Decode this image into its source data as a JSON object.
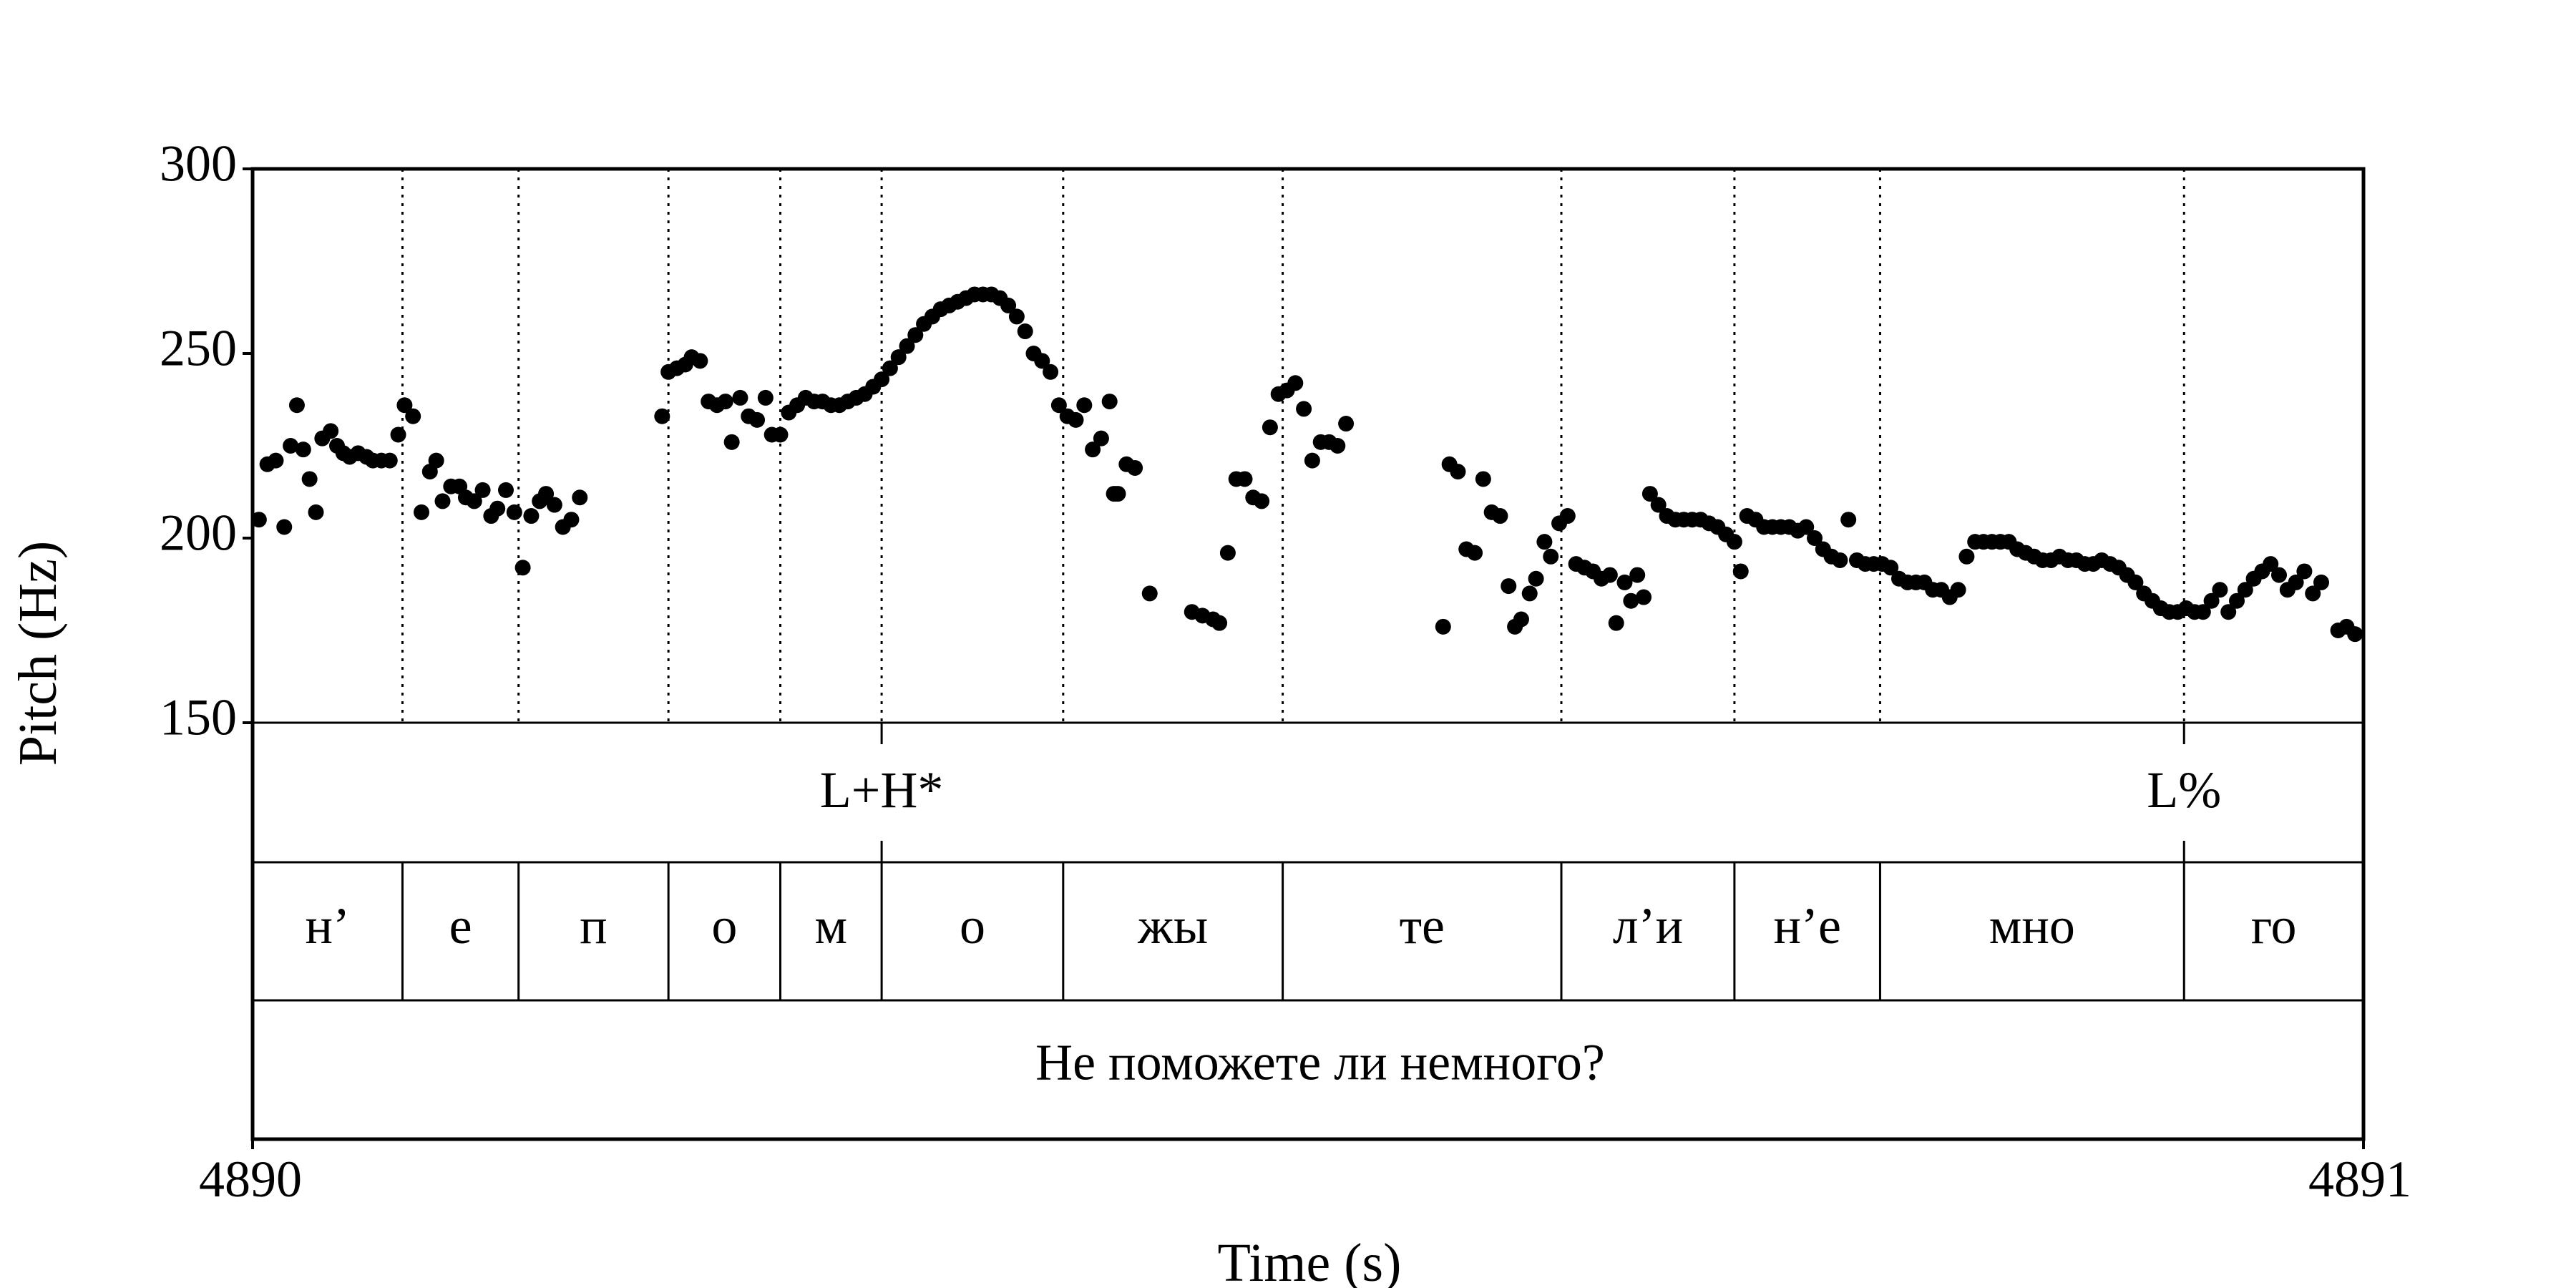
{
  "chart_data": {
    "type": "scatter",
    "title": "",
    "xlabel": "Time (s)",
    "ylabel": "Pitch (Hz)",
    "x_tick_labels": [
      "4890",
      "4891"
    ],
    "y_tick_labels": [
      "300",
      "250",
      "200",
      "150"
    ],
    "xlim": [
      4890,
      4891
    ],
    "ylim": [
      150,
      300
    ],
    "y_ticks": [
      150,
      200,
      250,
      300
    ],
    "tone_tier": {
      "marks": [
        {
          "time": 4890.298,
          "label": "L+H*"
        },
        {
          "time": 4890.915,
          "label": "L%"
        }
      ]
    },
    "segment_tier": {
      "boundaries": [
        4890.071,
        4890.126,
        4890.197,
        4890.25,
        4890.298,
        4890.384,
        4890.488,
        4890.62,
        4890.702,
        4890.771,
        4890.915
      ],
      "segments": [
        {
          "label": "н’",
          "start": 4890.0,
          "end": 4890.071
        },
        {
          "label": "е",
          "start": 4890.071,
          "end": 4890.126
        },
        {
          "label": "п",
          "start": 4890.126,
          "end": 4890.197
        },
        {
          "label": "о",
          "start": 4890.197,
          "end": 4890.25
        },
        {
          "label": "м",
          "start": 4890.25,
          "end": 4890.298
        },
        {
          "label": "о",
          "start": 4890.298,
          "end": 4890.384
        },
        {
          "label": "жы",
          "start": 4890.384,
          "end": 4890.488
        },
        {
          "label": "те",
          "start": 4890.488,
          "end": 4890.62
        },
        {
          "label": "л’и",
          "start": 4890.62,
          "end": 4890.702
        },
        {
          "label": "н’е",
          "start": 4890.702,
          "end": 4890.771
        },
        {
          "label": "мно",
          "start": 4890.771,
          "end": 4890.915
        },
        {
          "label": "го",
          "start": 4890.915,
          "end": 4891.0
        }
      ]
    },
    "sentence_tier": {
      "label": "Не поможете ли немного?",
      "start": 4890.0,
      "end": 4891.0
    },
    "series": [
      {
        "points": [
          [
            4890.003,
            205
          ],
          [
            4890.007,
            220
          ],
          [
            4890.011,
            221
          ],
          [
            4890.015,
            203
          ],
          [
            4890.018,
            225
          ],
          [
            4890.021,
            236
          ],
          [
            4890.024,
            224
          ],
          [
            4890.027,
            216
          ],
          [
            4890.03,
            207
          ],
          [
            4890.033,
            227
          ],
          [
            4890.037,
            229
          ],
          [
            4890.04,
            225
          ],
          [
            4890.043,
            223
          ],
          [
            4890.046,
            222
          ],
          [
            4890.05,
            223
          ],
          [
            4890.054,
            222
          ],
          [
            4890.057,
            221
          ],
          [
            4890.061,
            221
          ],
          [
            4890.065,
            221
          ],
          [
            4890.069,
            228
          ],
          [
            4890.072,
            236
          ],
          [
            4890.076,
            233
          ],
          [
            4890.08,
            207
          ],
          [
            4890.084,
            218
          ],
          [
            4890.087,
            221
          ],
          [
            4890.09,
            210
          ],
          [
            4890.094,
            214
          ],
          [
            4890.098,
            214
          ],
          [
            4890.101,
            211
          ],
          [
            4890.105,
            210
          ],
          [
            4890.109,
            213
          ],
          [
            4890.113,
            206
          ],
          [
            4890.116,
            208
          ],
          [
            4890.12,
            213
          ],
          [
            4890.124,
            207
          ],
          [
            4890.128,
            192
          ],
          [
            4890.132,
            206
          ],
          [
            4890.136,
            210
          ],
          [
            4890.139,
            212
          ],
          [
            4890.143,
            209
          ],
          [
            4890.147,
            203
          ],
          [
            4890.151,
            205
          ],
          [
            4890.155,
            211
          ],
          [
            4890.194,
            233
          ],
          [
            4890.197,
            245
          ],
          [
            4890.201,
            246
          ],
          [
            4890.205,
            247
          ],
          [
            4890.208,
            249
          ],
          [
            4890.212,
            248
          ],
          [
            4890.216,
            237
          ],
          [
            4890.22,
            236
          ],
          [
            4890.224,
            237
          ],
          [
            4890.227,
            226
          ],
          [
            4890.231,
            238
          ],
          [
            4890.235,
            233
          ],
          [
            4890.239,
            232
          ],
          [
            4890.243,
            238
          ],
          [
            4890.246,
            228
          ],
          [
            4890.25,
            228
          ],
          [
            4890.254,
            234
          ],
          [
            4890.258,
            236
          ],
          [
            4890.262,
            238
          ],
          [
            4890.266,
            237
          ],
          [
            4890.27,
            237
          ],
          [
            4890.274,
            236
          ],
          [
            4890.278,
            236
          ],
          [
            4890.282,
            237
          ],
          [
            4890.286,
            238
          ],
          [
            4890.29,
            239
          ],
          [
            4890.294,
            241
          ],
          [
            4890.298,
            243
          ],
          [
            4890.302,
            246
          ],
          [
            4890.306,
            249
          ],
          [
            4890.31,
            252
          ],
          [
            4890.314,
            255
          ],
          [
            4890.318,
            258
          ],
          [
            4890.322,
            260
          ],
          [
            4890.326,
            262
          ],
          [
            4890.33,
            263
          ],
          [
            4890.334,
            264
          ],
          [
            4890.338,
            265
          ],
          [
            4890.342,
            266
          ],
          [
            4890.346,
            266
          ],
          [
            4890.35,
            266
          ],
          [
            4890.354,
            265
          ],
          [
            4890.358,
            263
          ],
          [
            4890.362,
            260
          ],
          [
            4890.366,
            256
          ],
          [
            4890.37,
            250
          ],
          [
            4890.374,
            248
          ],
          [
            4890.378,
            245
          ],
          [
            4890.382,
            236
          ],
          [
            4890.386,
            233
          ],
          [
            4890.39,
            232
          ],
          [
            4890.394,
            236
          ],
          [
            4890.398,
            224
          ],
          [
            4890.402,
            227
          ],
          [
            4890.406,
            237
          ],
          [
            4890.41,
            212
          ],
          [
            4890.414,
            220
          ],
          [
            4890.418,
            219
          ],
          [
            4890.409,
            212
          ],
          [
            4890.408,
            212
          ],
          [
            4890.425,
            185
          ],
          [
            4890.445,
            180
          ],
          [
            4890.45,
            179
          ],
          [
            4890.455,
            178
          ],
          [
            4890.458,
            177
          ],
          [
            4890.462,
            196
          ],
          [
            4890.466,
            216
          ],
          [
            4890.47,
            216
          ],
          [
            4890.474,
            211
          ],
          [
            4890.478,
            210
          ],
          [
            4890.482,
            230
          ],
          [
            4890.486,
            239
          ],
          [
            4890.49,
            240
          ],
          [
            4890.494,
            242
          ],
          [
            4890.498,
            235
          ],
          [
            4890.502,
            221
          ],
          [
            4890.506,
            226
          ],
          [
            4890.51,
            226
          ],
          [
            4890.514,
            225
          ],
          [
            4890.518,
            231
          ],
          [
            4890.564,
            176
          ],
          [
            4890.567,
            220
          ],
          [
            4890.571,
            218
          ],
          [
            4890.575,
            197
          ],
          [
            4890.579,
            196
          ],
          [
            4890.583,
            216
          ],
          [
            4890.587,
            207
          ],
          [
            4890.591,
            206
          ],
          [
            4890.595,
            187
          ],
          [
            4890.598,
            176
          ],
          [
            4890.601,
            178
          ],
          [
            4890.605,
            185
          ],
          [
            4890.608,
            189
          ],
          [
            4890.612,
            199
          ],
          [
            4890.615,
            195
          ],
          [
            4890.619,
            204
          ],
          [
            4890.623,
            206
          ],
          [
            4890.627,
            193
          ],
          [
            4890.631,
            192
          ],
          [
            4890.635,
            191
          ],
          [
            4890.639,
            189
          ],
          [
            4890.643,
            190
          ],
          [
            4890.646,
            177
          ],
          [
            4890.65,
            188
          ],
          [
            4890.653,
            183
          ],
          [
            4890.656,
            190
          ],
          [
            4890.659,
            184
          ],
          [
            4890.662,
            212
          ],
          [
            4890.666,
            209
          ],
          [
            4890.67,
            206
          ],
          [
            4890.674,
            205
          ],
          [
            4890.678,
            205
          ],
          [
            4890.682,
            205
          ],
          [
            4890.686,
            205
          ],
          [
            4890.69,
            204
          ],
          [
            4890.694,
            203
          ],
          [
            4890.698,
            201
          ],
          [
            4890.702,
            199
          ],
          [
            4890.705,
            191
          ],
          [
            4890.708,
            206
          ],
          [
            4890.712,
            205
          ],
          [
            4890.716,
            203
          ],
          [
            4890.72,
            203
          ],
          [
            4890.724,
            203
          ],
          [
            4890.728,
            203
          ],
          [
            4890.732,
            202
          ],
          [
            4890.736,
            203
          ],
          [
            4890.74,
            200
          ],
          [
            4890.744,
            197
          ],
          [
            4890.748,
            195
          ],
          [
            4890.752,
            194
          ],
          [
            4890.756,
            205
          ],
          [
            4890.76,
            194
          ],
          [
            4890.764,
            193
          ],
          [
            4890.768,
            193
          ],
          [
            4890.772,
            193
          ],
          [
            4890.776,
            192
          ],
          [
            4890.78,
            189
          ],
          [
            4890.784,
            188
          ],
          [
            4890.788,
            188
          ],
          [
            4890.792,
            188
          ],
          [
            4890.796,
            186
          ],
          [
            4890.8,
            186
          ],
          [
            4890.804,
            184
          ],
          [
            4890.808,
            186
          ],
          [
            4890.812,
            195
          ],
          [
            4890.816,
            199
          ],
          [
            4890.82,
            199
          ],
          [
            4890.824,
            199
          ],
          [
            4890.828,
            199
          ],
          [
            4890.832,
            199
          ],
          [
            4890.836,
            197
          ],
          [
            4890.84,
            196
          ],
          [
            4890.844,
            195
          ],
          [
            4890.848,
            194
          ],
          [
            4890.852,
            194
          ],
          [
            4890.856,
            195
          ],
          [
            4890.86,
            194
          ],
          [
            4890.864,
            194
          ],
          [
            4890.868,
            193
          ],
          [
            4890.872,
            193
          ],
          [
            4890.876,
            194
          ],
          [
            4890.88,
            193
          ],
          [
            4890.884,
            192
          ],
          [
            4890.888,
            190
          ],
          [
            4890.892,
            188
          ],
          [
            4890.896,
            185
          ],
          [
            4890.9,
            183
          ],
          [
            4890.904,
            181
          ],
          [
            4890.908,
            180
          ],
          [
            4890.912,
            180
          ],
          [
            4890.916,
            181
          ],
          [
            4890.92,
            180
          ],
          [
            4890.924,
            180
          ],
          [
            4890.928,
            183
          ],
          [
            4890.932,
            186
          ],
          [
            4890.936,
            180
          ],
          [
            4890.94,
            183
          ],
          [
            4890.944,
            186
          ],
          [
            4890.948,
            189
          ],
          [
            4890.952,
            191
          ],
          [
            4890.956,
            193
          ],
          [
            4890.96,
            190
          ],
          [
            4890.964,
            186
          ],
          [
            4890.968,
            188
          ],
          [
            4890.972,
            191
          ],
          [
            4890.976,
            185
          ],
          [
            4890.98,
            188
          ],
          [
            4890.988,
            175
          ],
          [
            4890.992,
            176
          ],
          [
            4890.996,
            174
          ]
        ]
      }
    ]
  }
}
